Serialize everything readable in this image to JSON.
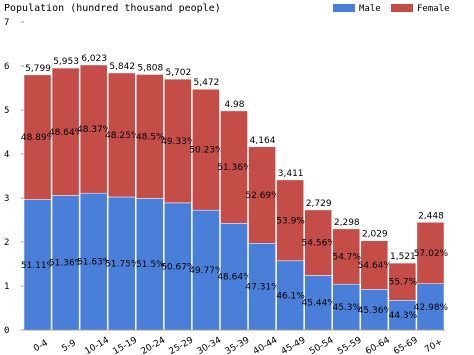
{
  "chart_data": {
    "type": "stacked-percent-bar",
    "title": "Population (hundred thousand people)",
    "categories": [
      "0-4",
      "5-9",
      "10-14",
      "15-19",
      "20-24",
      "25-29",
      "30-34",
      "35-39",
      "40-44",
      "45-49",
      "50-54",
      "55-59",
      "60-64",
      "65-69",
      "70+"
    ],
    "totals": {
      "values": [
        5.799,
        5.953,
        6.023,
        5.842,
        5.808,
        5.702,
        5.472,
        4.98,
        4.164,
        3.411,
        2.729,
        2.298,
        2.029,
        1.521,
        2.448
      ],
      "value_labels": [
        "5,799",
        "5,953",
        "6,023",
        "5,842",
        "5,808",
        "5,702",
        "5,472",
        "4.98",
        "4,164",
        "3,411",
        "2,729",
        "2,298",
        "2,029",
        "1,521",
        "2,448"
      ]
    },
    "series": [
      {
        "name": "Male",
        "color": "#4a7fd9",
        "values": [
          51.11,
          51.36,
          51.63,
          51.75,
          51.5,
          50.67,
          49.77,
          48.64,
          47.31,
          46.1,
          45.44,
          45.3,
          45.36,
          44.3,
          42.98
        ],
        "value_labels": [
          "51.11%",
          "51.36%",
          "51.63%",
          "51.75%",
          "51.5%",
          "50.67%",
          "49.77%",
          "48.64%",
          "47.31%",
          "46.1%",
          "45.44%",
          "45.3%",
          "45.36%",
          "44.3%",
          "42.98%"
        ]
      },
      {
        "name": "Female",
        "color": "#c44d48",
        "values": [
          48.89,
          48.64,
          48.37,
          48.25,
          48.5,
          49.33,
          50.23,
          51.36,
          52.69,
          53.9,
          54.56,
          54.7,
          54.64,
          55.7,
          57.02
        ],
        "value_labels": [
          "48.89%",
          "48.64%",
          "48.37%",
          "48.25%",
          "48.5%",
          "49.33%",
          "50.23%",
          "51.36%",
          "52.69%",
          "53.9%",
          "54.56%",
          "54.7%",
          "54.64%",
          "55.7%",
          "57.02%"
        ]
      }
    ],
    "ylim": [
      0,
      7
    ],
    "yticks": [
      0,
      1,
      2,
      3,
      4,
      5,
      6,
      7
    ],
    "legend": "top-right"
  }
}
